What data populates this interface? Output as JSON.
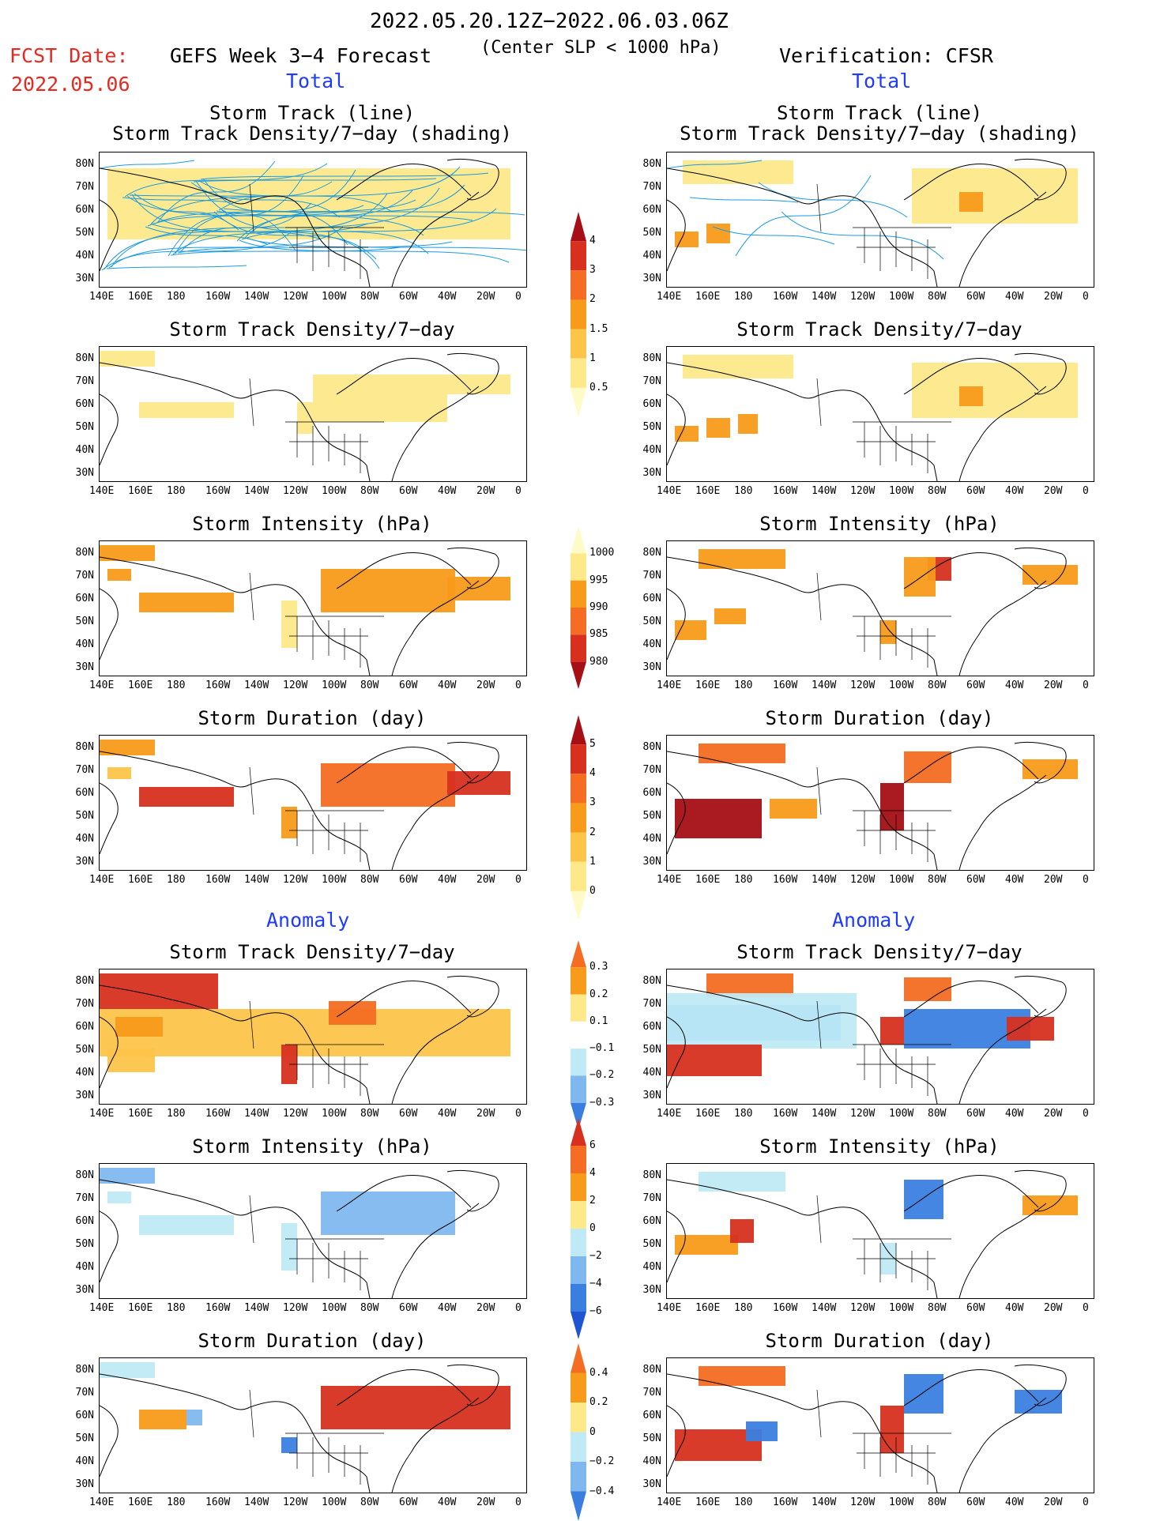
{
  "header": {
    "date_range": "2022.05.20.12Z−2022.06.03.06Z",
    "fcst_label": "FCST Date:",
    "fcst_date": "2022.05.06",
    "forecast_title": "GEFS Week 3−4 Forecast",
    "condition": "(Center SLP < 1000 hPa)",
    "verification": "Verification: CFSR"
  },
  "sections": {
    "total": "Total",
    "anomaly": "Anomaly"
  },
  "titles": {
    "track_line": "Storm Track (line)",
    "track_density_shading": "Storm Track Density/7−day (shading)",
    "track_density": "Storm Track Density/7−day",
    "intensity": "Storm Intensity (hPa)",
    "duration": "Storm Duration (day)"
  },
  "axes": {
    "lat": [
      "80N",
      "70N",
      "60N",
      "50N",
      "40N",
      "30N"
    ],
    "lon": [
      "140E",
      "160E",
      "180",
      "160W",
      "140W",
      "120W",
      "100W",
      "80W",
      "60W",
      "40W",
      "20W",
      "0"
    ]
  },
  "colorbars": {
    "density_total": {
      "labels": [
        "4",
        "3",
        "2",
        "1.5",
        "1",
        "0.5"
      ],
      "colors": [
        "#a50f15",
        "#d7301f",
        "#f46d22",
        "#f89a1a",
        "#fdc44a",
        "#fde98a",
        "#fffbc8"
      ]
    },
    "intensity_total": {
      "labels": [
        "1000",
        "995",
        "990",
        "985",
        "980"
      ],
      "colors": [
        "#fffbc8",
        "#fde98a",
        "#f89a1a",
        "#f46d22",
        "#d7301f",
        "#a50f15"
      ]
    },
    "duration_total": {
      "labels": [
        "5",
        "4",
        "3",
        "2",
        "1",
        "0"
      ],
      "colors": [
        "#a50f15",
        "#d7301f",
        "#f46d22",
        "#f89a1a",
        "#fdc44a",
        "#fde98a",
        "#fffbc8"
      ]
    },
    "density_anom": {
      "labels": [
        "0.3",
        "0.2",
        "0.1",
        "−0.1",
        "−0.2",
        "−0.3"
      ],
      "colors": [
        "#f46d22",
        "#f89a1a",
        "#fde98a",
        "#ffffff",
        "#bfeaf5",
        "#7fb8ef",
        "#3a7fe0"
      ]
    },
    "intensity_anom": {
      "labels": [
        "6",
        "4",
        "2",
        "0",
        "−2",
        "−4",
        "−6"
      ],
      "colors": [
        "#d7301f",
        "#f46d22",
        "#f89a1a",
        "#fde98a",
        "#bfeaf5",
        "#7fb8ef",
        "#3a7fe0",
        "#1f55d0"
      ]
    },
    "duration_anom": {
      "labels": [
        "0.4",
        "0.2",
        "0",
        "−0.2",
        "−0.4"
      ],
      "colors": [
        "#f46d22",
        "#f89a1a",
        "#fde98a",
        "#bfeaf5",
        "#7fb8ef",
        "#3a7fe0"
      ]
    }
  },
  "shade_colors": {
    "yellow": "#fde98a",
    "lightorange": "#fdc44a",
    "orange": "#f89a1a",
    "darkorange": "#f46d22",
    "red": "#d7301f",
    "darkred": "#a50f15",
    "lightblue": "#bfeaf5",
    "midblue": "#7fb8ef",
    "blue": "#3a7fe0"
  }
}
